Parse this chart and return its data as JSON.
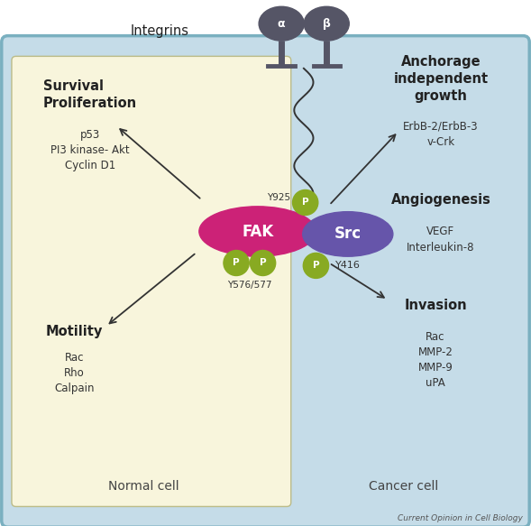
{
  "fig_width": 5.89,
  "fig_height": 5.83,
  "dpi": 100,
  "bg_color": "#ffffff",
  "outer_border_color": "#7ab0c0",
  "outer_bg": "#c5dce8",
  "normal_cell_bg": "#f8f5dc",
  "normal_cell_border": "#cccc99",
  "fak_color": "#cc2277",
  "src_color": "#6655aa",
  "phospho_color": "#88aa22",
  "integrin_color": "#555566",
  "integrin_label": "Integrins",
  "normal_cell_label": "Normal cell",
  "cancer_cell_label": "Cancer cell",
  "journal_label": "Current Opinion in Cell Biology",
  "survival_title": "Survival\nProliferation",
  "survival_items": "p53\nPI3 kinase- Akt\nCyclin D1",
  "motility_title": "Motility",
  "motility_items": "Rac\nRho\nCalpain",
  "anchorage_title": "Anchorage\nindependent\ngrowth",
  "anchorage_items": "ErbB-2/ErbB-3\nv-Crk",
  "angiogenesis_title": "Angiogenesis",
  "angiogenesis_items": "VEGF\nInterleukin-8",
  "invasion_title": "Invasion",
  "invasion_items": "Rac\nMMP-2\nMMP-9\nuPA",
  "y925_label": "Y925",
  "y576_label": "Y576/577",
  "y416_label": "Y416",
  "fak_label": "FAK",
  "src_label": "Src",
  "alpha_label": "α",
  "beta_label": "β"
}
